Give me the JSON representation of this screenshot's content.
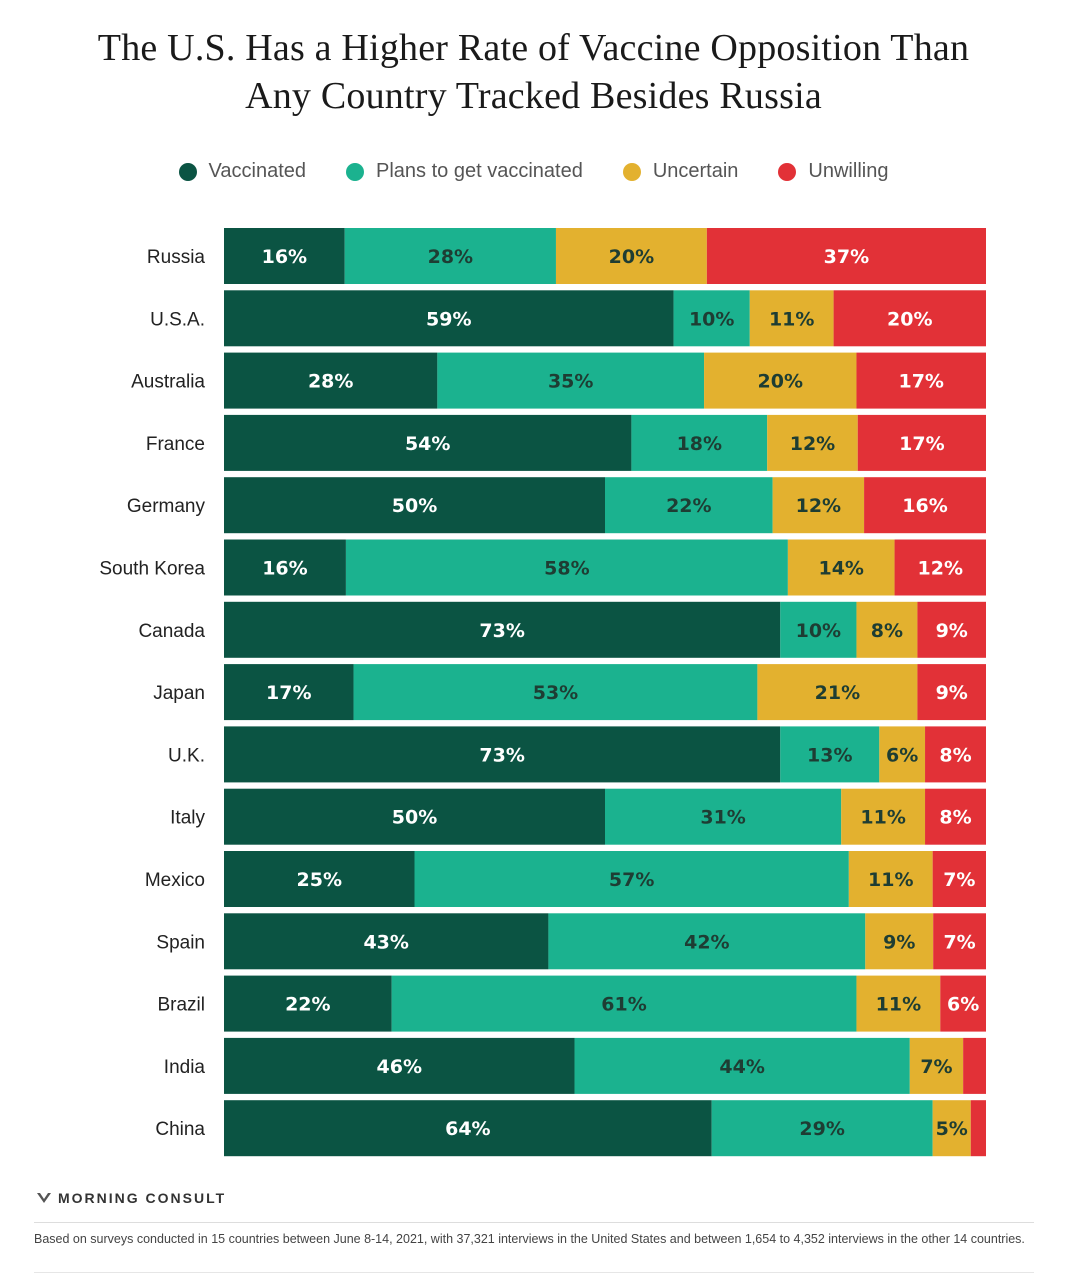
{
  "title_line1": "The U.S. Has a Higher Rate of Vaccine Opposition Than",
  "title_line2": "Any Country Tracked Besides Russia",
  "legend": [
    {
      "label": "Vaccinated",
      "color": "#0b5443"
    },
    {
      "label": "Plans to get vaccinated",
      "color": "#1bb28f"
    },
    {
      "label": "Uncertain",
      "color": "#e3b12f"
    },
    {
      "label": "Unwilling",
      "color": "#e23137"
    }
  ],
  "source_name": "MORNING CONSULT",
  "footnote": "Based on surveys conducted in 15 countries between June 8-14, 2021, with 37,321 interviews in the United States and between 1,654 to 4,352 interviews in the other 14 countries.",
  "chart_data": {
    "type": "bar",
    "orientation": "horizontal",
    "stacked": true,
    "unit": "%",
    "categories": [
      "Russia",
      "U.S.A.",
      "Australia",
      "France",
      "Germany",
      "South Korea",
      "Canada",
      "Japan",
      "U.K.",
      "Italy",
      "Mexico",
      "Spain",
      "Brazil",
      "India",
      "China"
    ],
    "series": [
      {
        "name": "Vaccinated",
        "values": [
          16,
          59,
          28,
          54,
          50,
          16,
          73,
          17,
          73,
          50,
          25,
          43,
          22,
          46,
          64
        ],
        "labels": [
          "16%",
          "59%",
          "28%",
          "54%",
          "50%",
          "16%",
          "73%",
          "17%",
          "73%",
          "50%",
          "25%",
          "43%",
          "22%",
          "46%",
          "64%"
        ]
      },
      {
        "name": "Plans to get vaccinated",
        "values": [
          28,
          10,
          35,
          18,
          22,
          58,
          10,
          53,
          13,
          31,
          57,
          42,
          61,
          44,
          29
        ],
        "labels": [
          "28%",
          "10%",
          "35%",
          "18%",
          "22%",
          "58%",
          "10%",
          "53%",
          "13%",
          "31%",
          "57%",
          "42%",
          "61%",
          "44%",
          "29%"
        ]
      },
      {
        "name": "Uncertain",
        "values": [
          20,
          11,
          20,
          12,
          12,
          14,
          8,
          21,
          6,
          11,
          11,
          9,
          11,
          7,
          5
        ],
        "labels": [
          "20%",
          "11%",
          "20%",
          "12%",
          "12%",
          "14%",
          "8%",
          "21%",
          "6%",
          "11%",
          "11%",
          "9%",
          "11%",
          "7%",
          "5%"
        ]
      },
      {
        "name": "Unwilling",
        "values": [
          37,
          20,
          17,
          17,
          16,
          12,
          9,
          9,
          8,
          8,
          7,
          7,
          6,
          3,
          2
        ],
        "labels": [
          "37%",
          "20%",
          "17%",
          "17%",
          "16%",
          "12%",
          "9%",
          "9%",
          "8%",
          "8%",
          "7%",
          "7%",
          "6%",
          "",
          ""
        ]
      }
    ],
    "xlim": [
      0,
      100
    ],
    "grid": false,
    "legend_position": "top"
  }
}
